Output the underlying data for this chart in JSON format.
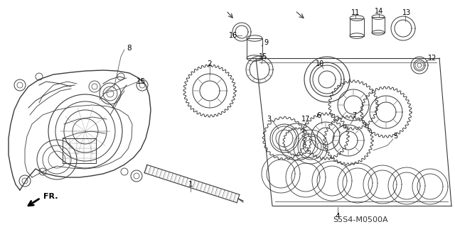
{
  "bg_color": "#ffffff",
  "fig_width": 6.4,
  "fig_height": 3.2,
  "dpi": 100,
  "diagram_code": "S5S4-M0500A",
  "fr_label": "FR.",
  "line_color": "#3a3a3a",
  "lw_main": 0.9,
  "lw_thin": 0.5,
  "lw_gear": 0.7
}
